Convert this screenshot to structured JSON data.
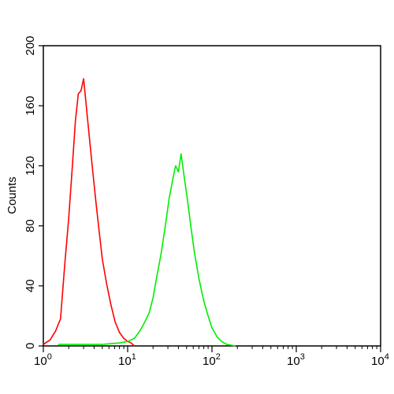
{
  "chart_data": {
    "type": "line",
    "title": "",
    "xlabel": "",
    "ylabel": "Counts",
    "x_scale": "log",
    "xlim": [
      1,
      10000
    ],
    "ylim": [
      0,
      200
    ],
    "grid": false,
    "y_ticks": [
      0,
      40,
      80,
      120,
      160,
      200
    ],
    "x_ticks": [
      {
        "base": "10",
        "exp": "0",
        "value": 1
      },
      {
        "base": "10",
        "exp": "1",
        "value": 10
      },
      {
        "base": "10",
        "exp": "2",
        "value": 100
      },
      {
        "base": "10",
        "exp": "3",
        "value": 1000
      },
      {
        "base": "10",
        "exp": "4",
        "value": 10000
      }
    ],
    "series": [
      {
        "color": "#ff0000",
        "points": [
          [
            1.0,
            1
          ],
          [
            1.2,
            4
          ],
          [
            1.4,
            10
          ],
          [
            1.6,
            18
          ],
          [
            1.8,
            55
          ],
          [
            2.0,
            85
          ],
          [
            2.2,
            118
          ],
          [
            2.4,
            150
          ],
          [
            2.6,
            168
          ],
          [
            2.8,
            170
          ],
          [
            3.0,
            178
          ],
          [
            3.2,
            162
          ],
          [
            3.5,
            140
          ],
          [
            3.8,
            120
          ],
          [
            4.2,
            96
          ],
          [
            4.6,
            76
          ],
          [
            5.0,
            58
          ],
          [
            5.6,
            42
          ],
          [
            6.3,
            28
          ],
          [
            7.1,
            16
          ],
          [
            8.0,
            9
          ],
          [
            9.0,
            5
          ],
          [
            10.0,
            3
          ],
          [
            11.0,
            2
          ],
          [
            12.0,
            0
          ]
        ]
      },
      {
        "color": "#00ee00",
        "points": [
          [
            1.5,
            1
          ],
          [
            3.0,
            1
          ],
          [
            5.0,
            1
          ],
          [
            8.0,
            2
          ],
          [
            10.0,
            3
          ],
          [
            12.0,
            5
          ],
          [
            14.0,
            10
          ],
          [
            16.0,
            16
          ],
          [
            18.0,
            22
          ],
          [
            20.0,
            32
          ],
          [
            22.0,
            45
          ],
          [
            25.0,
            62
          ],
          [
            28.0,
            80
          ],
          [
            31.0,
            98
          ],
          [
            34.0,
            110
          ],
          [
            37.0,
            120
          ],
          [
            40.0,
            116
          ],
          [
            43.0,
            128
          ],
          [
            47.0,
            112
          ],
          [
            51.0,
            98
          ],
          [
            56.0,
            80
          ],
          [
            62.0,
            62
          ],
          [
            70.0,
            45
          ],
          [
            80.0,
            30
          ],
          [
            90.0,
            20
          ],
          [
            100.0,
            12
          ],
          [
            115.0,
            6
          ],
          [
            130.0,
            3
          ],
          [
            150.0,
            1
          ],
          [
            190.0,
            0
          ]
        ]
      }
    ]
  }
}
